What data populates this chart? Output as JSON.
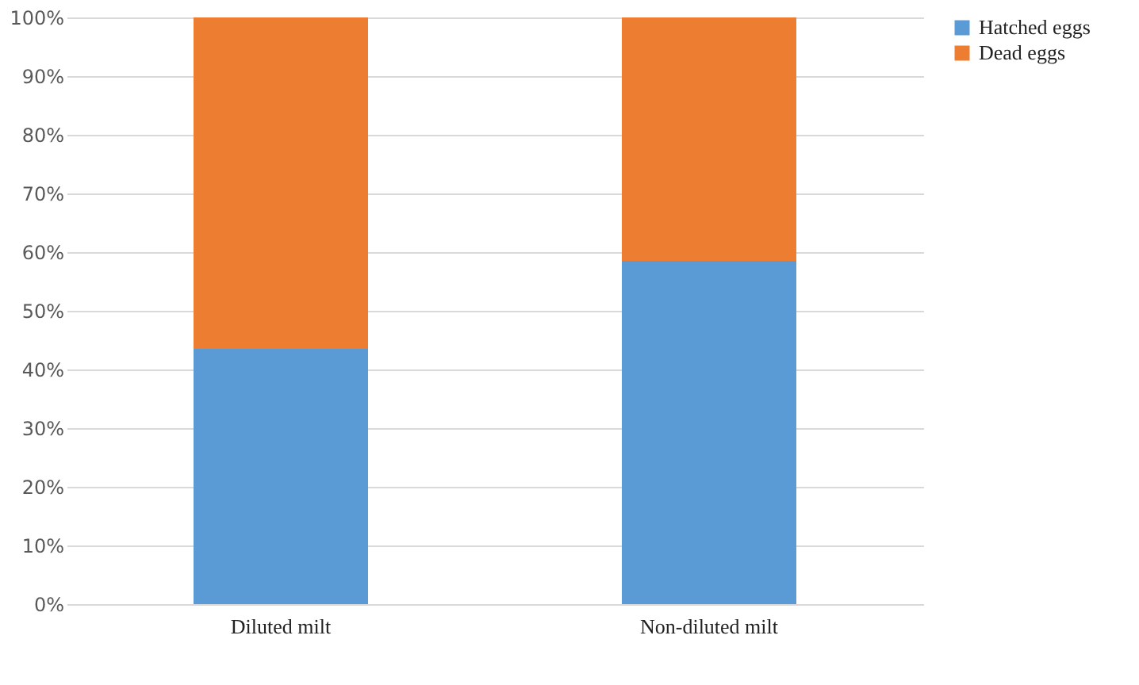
{
  "chart_data": {
    "type": "bar",
    "stacked": true,
    "categories": [
      "Diluted milt",
      "Non-diluted milt"
    ],
    "series": [
      {
        "name": "Hatched eggs",
        "color": "#5b9bd5",
        "values": [
          43.5,
          58.5
        ]
      },
      {
        "name": "Dead eggs",
        "color": "#ed7d31",
        "values": [
          56.5,
          41.5
        ]
      }
    ],
    "ylim": [
      0,
      100
    ],
    "yticks": [
      {
        "value": 0,
        "label": "0%"
      },
      {
        "value": 10,
        "label": "10%"
      },
      {
        "value": 20,
        "label": "20%"
      },
      {
        "value": 30,
        "label": "30%"
      },
      {
        "value": 40,
        "label": "40%"
      },
      {
        "value": 50,
        "label": "50%"
      },
      {
        "value": 60,
        "label": "60%"
      },
      {
        "value": 70,
        "label": "70%"
      },
      {
        "value": 80,
        "label": "80%"
      },
      {
        "value": 90,
        "label": "90%"
      },
      {
        "value": 100,
        "label": "100%"
      }
    ],
    "grid": "y",
    "legend": "right"
  }
}
